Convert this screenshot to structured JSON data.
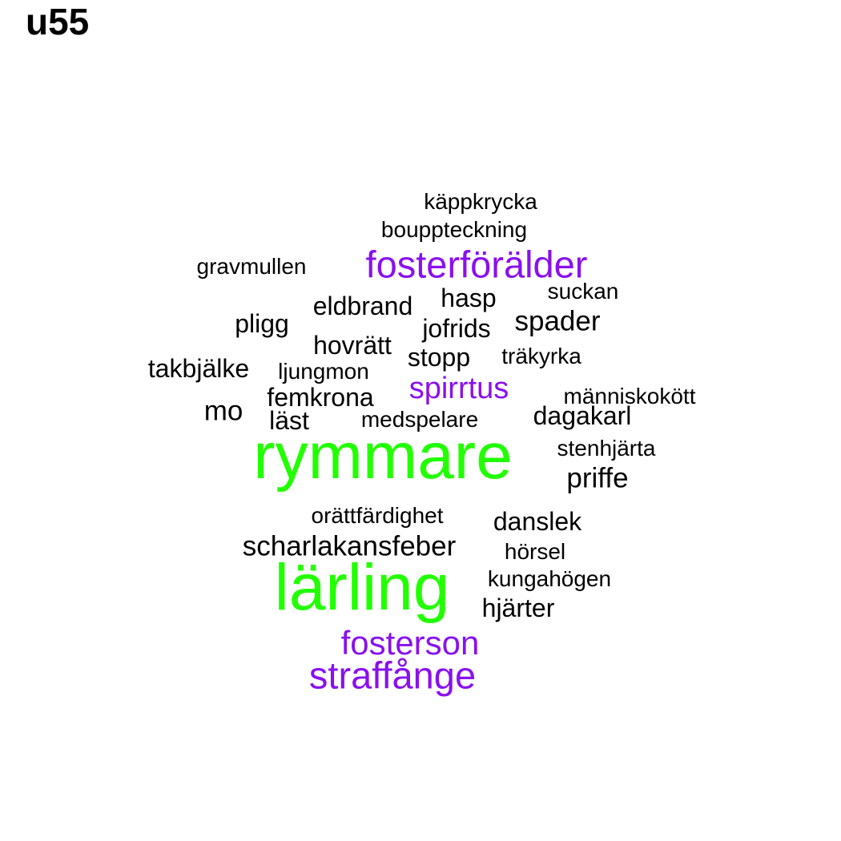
{
  "title": "u55",
  "colors": {
    "high": "#22ff00",
    "mid": "#8a10ee",
    "low": "#000000"
  },
  "words": [
    {
      "text": "rymmare",
      "tier": "high"
    },
    {
      "text": "lärling",
      "tier": "high"
    },
    {
      "text": "fosterförälder",
      "tier": "mid"
    },
    {
      "text": "straffånge",
      "tier": "mid"
    },
    {
      "text": "fosterson",
      "tier": "mid"
    },
    {
      "text": "spirrtus",
      "tier": "mid"
    },
    {
      "text": "käppkrycka",
      "tier": "low"
    },
    {
      "text": "bouppteckning",
      "tier": "low"
    },
    {
      "text": "gravmullen",
      "tier": "low"
    },
    {
      "text": "suckan",
      "tier": "low"
    },
    {
      "text": "hasp",
      "tier": "low"
    },
    {
      "text": "eldbrand",
      "tier": "low"
    },
    {
      "text": "pligg",
      "tier": "low"
    },
    {
      "text": "spader",
      "tier": "low"
    },
    {
      "text": "jofrids",
      "tier": "low"
    },
    {
      "text": "hovrätt",
      "tier": "low"
    },
    {
      "text": "stopp",
      "tier": "low"
    },
    {
      "text": "träkyrka",
      "tier": "low"
    },
    {
      "text": "takbjälke",
      "tier": "low"
    },
    {
      "text": "ljungmon",
      "tier": "low"
    },
    {
      "text": "femkrona",
      "tier": "low"
    },
    {
      "text": "människokött",
      "tier": "low"
    },
    {
      "text": "mo",
      "tier": "low"
    },
    {
      "text": "läst",
      "tier": "low"
    },
    {
      "text": "medspelare",
      "tier": "low"
    },
    {
      "text": "dagakarl",
      "tier": "low"
    },
    {
      "text": "stenhjärta",
      "tier": "low"
    },
    {
      "text": "priffe",
      "tier": "low"
    },
    {
      "text": "orättfärdighet",
      "tier": "low"
    },
    {
      "text": "danslek",
      "tier": "low"
    },
    {
      "text": "scharlakansfeber",
      "tier": "low"
    },
    {
      "text": "hörsel",
      "tier": "low"
    },
    {
      "text": "kungahögen",
      "tier": "low"
    },
    {
      "text": "hjärter",
      "tier": "low"
    }
  ]
}
